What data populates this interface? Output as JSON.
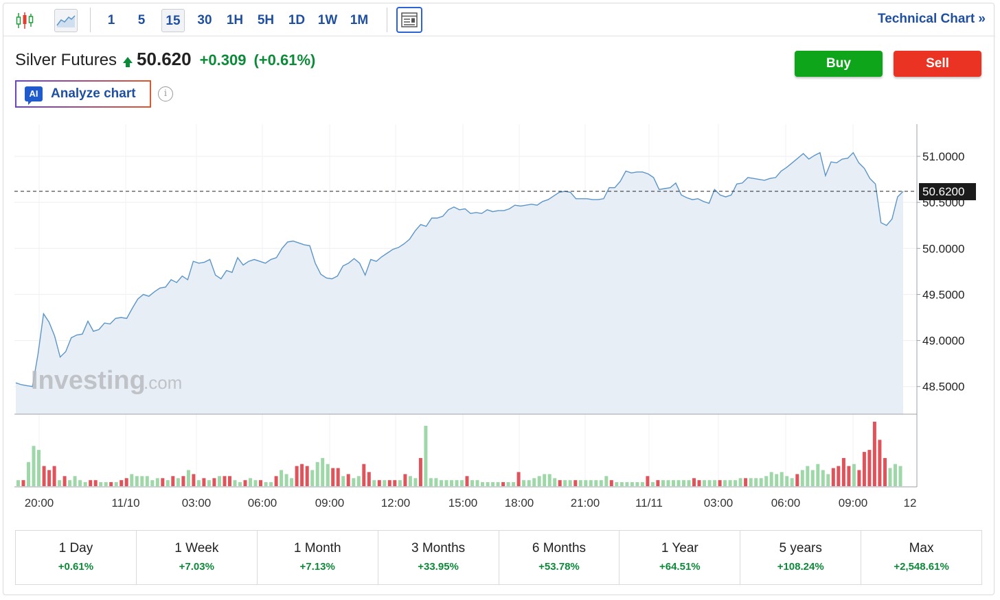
{
  "toolbar": {
    "intervals": [
      "1",
      "5",
      "15",
      "30",
      "1H",
      "5H",
      "1D",
      "1W",
      "1M"
    ],
    "active_interval": "15",
    "technical_chart_label": "Technical Chart »"
  },
  "header": {
    "symbol": "Silver Futures",
    "price": "50.620",
    "change": "+0.309",
    "change_pct": "(+0.61%)"
  },
  "actions": {
    "buy": "Buy",
    "sell": "Sell"
  },
  "ai": {
    "badge": "AI",
    "label": "Analyze chart",
    "info": "i"
  },
  "watermark": {
    "brand": "Investing",
    "suffix": ".com"
  },
  "colors": {
    "accent": "#1f4fa0",
    "up": "#0b8a38",
    "buy": "#0ea51b",
    "sell": "#ea3322",
    "line": "#5b95c7",
    "area": "#e8eef6",
    "vol_up": "#9fd8a8",
    "vol_down": "#e0535b"
  },
  "chart_data": {
    "type": "area",
    "y_ticks": [
      "51.0000",
      "50.5000",
      "50.0000",
      "49.5000",
      "49.0000",
      "48.5000"
    ],
    "ylim": [
      48.2,
      51.35
    ],
    "x_labels": [
      "20:00",
      "11/10",
      "03:00",
      "06:00",
      "09:00",
      "12:00",
      "15:00",
      "18:00",
      "21:00",
      "11/11",
      "03:00",
      "06:00",
      "09:00",
      "12"
    ],
    "last_price_label": "50.6200",
    "last_price": 50.62,
    "price_series": [
      48.54,
      48.52,
      48.51,
      48.5,
      48.85,
      49.29,
      49.2,
      49.05,
      48.82,
      48.88,
      49.03,
      49.06,
      49.07,
      49.21,
      49.1,
      49.12,
      49.19,
      49.18,
      49.24,
      49.25,
      49.24,
      49.35,
      49.45,
      49.5,
      49.48,
      49.53,
      49.57,
      49.58,
      49.66,
      49.63,
      49.7,
      49.66,
      49.86,
      49.84,
      49.85,
      49.88,
      49.71,
      49.67,
      49.76,
      49.74,
      49.9,
      49.82,
      49.86,
      49.88,
      49.86,
      49.84,
      49.88,
      49.9,
      50.0,
      50.07,
      50.08,
      50.06,
      50.04,
      50.03,
      49.84,
      49.72,
      49.68,
      49.67,
      49.7,
      49.81,
      49.84,
      49.89,
      49.84,
      49.71,
      49.88,
      49.86,
      49.91,
      49.95,
      49.99,
      50.01,
      50.05,
      50.1,
      50.19,
      50.26,
      50.24,
      50.33,
      50.33,
      50.35,
      50.42,
      50.45,
      50.42,
      50.43,
      50.38,
      50.39,
      50.38,
      50.42,
      50.4,
      50.41,
      50.41,
      50.43,
      50.47,
      50.46,
      50.47,
      50.48,
      50.47,
      50.51,
      50.53,
      50.57,
      50.61,
      50.62,
      50.61,
      50.54,
      50.54,
      50.54,
      50.53,
      50.53,
      50.54,
      50.66,
      50.66,
      50.73,
      50.84,
      50.82,
      50.83,
      50.83,
      50.81,
      50.77,
      50.64,
      50.65,
      50.66,
      50.71,
      50.58,
      50.55,
      50.53,
      50.54,
      50.51,
      50.49,
      50.64,
      50.58,
      50.56,
      50.58,
      50.7,
      50.71,
      50.77,
      50.76,
      50.75,
      50.74,
      50.76,
      50.77,
      50.84,
      50.88,
      50.93,
      50.98,
      51.03,
      50.97,
      51.01,
      51.04,
      50.79,
      50.94,
      50.93,
      50.97,
      50.98,
      51.04,
      50.93,
      50.87,
      50.76,
      50.7,
      50.28,
      50.25,
      50.32,
      50.56,
      50.62
    ],
    "volume_series": [
      {
        "v": 3,
        "d": "up"
      },
      {
        "v": 3,
        "d": "down"
      },
      {
        "v": 12,
        "d": "up"
      },
      {
        "v": 20,
        "d": "up"
      },
      {
        "v": 18,
        "d": "up"
      },
      {
        "v": 10,
        "d": "down"
      },
      {
        "v": 8,
        "d": "down"
      },
      {
        "v": 10,
        "d": "down"
      },
      {
        "v": 3,
        "d": "up"
      },
      {
        "v": 5,
        "d": "down"
      },
      {
        "v": 3,
        "d": "up"
      },
      {
        "v": 5,
        "d": "up"
      },
      {
        "v": 3,
        "d": "up"
      },
      {
        "v": 2,
        "d": "up"
      },
      {
        "v": 3,
        "d": "down"
      },
      {
        "v": 3,
        "d": "down"
      },
      {
        "v": 2,
        "d": "up"
      },
      {
        "v": 2,
        "d": "up"
      },
      {
        "v": 2,
        "d": "down"
      },
      {
        "v": 2,
        "d": "up"
      },
      {
        "v": 3,
        "d": "down"
      },
      {
        "v": 4,
        "d": "down"
      },
      {
        "v": 6,
        "d": "up"
      },
      {
        "v": 5,
        "d": "up"
      },
      {
        "v": 5,
        "d": "up"
      },
      {
        "v": 5,
        "d": "up"
      },
      {
        "v": 3,
        "d": "up"
      },
      {
        "v": 4,
        "d": "up"
      },
      {
        "v": 4,
        "d": "down"
      },
      {
        "v": 3,
        "d": "up"
      },
      {
        "v": 5,
        "d": "down"
      },
      {
        "v": 4,
        "d": "up"
      },
      {
        "v": 5,
        "d": "down"
      },
      {
        "v": 8,
        "d": "up"
      },
      {
        "v": 6,
        "d": "down"
      },
      {
        "v": 3,
        "d": "up"
      },
      {
        "v": 4,
        "d": "down"
      },
      {
        "v": 3,
        "d": "up"
      },
      {
        "v": 4,
        "d": "down"
      },
      {
        "v": 5,
        "d": "up"
      },
      {
        "v": 5,
        "d": "down"
      },
      {
        "v": 5,
        "d": "down"
      },
      {
        "v": 3,
        "d": "up"
      },
      {
        "v": 2,
        "d": "up"
      },
      {
        "v": 3,
        "d": "down"
      },
      {
        "v": 4,
        "d": "up"
      },
      {
        "v": 3,
        "d": "up"
      },
      {
        "v": 3,
        "d": "down"
      },
      {
        "v": 2,
        "d": "up"
      },
      {
        "v": 2,
        "d": "up"
      },
      {
        "v": 5,
        "d": "down"
      },
      {
        "v": 8,
        "d": "up"
      },
      {
        "v": 6,
        "d": "up"
      },
      {
        "v": 4,
        "d": "up"
      },
      {
        "v": 10,
        "d": "down"
      },
      {
        "v": 11,
        "d": "down"
      },
      {
        "v": 10,
        "d": "down"
      },
      {
        "v": 8,
        "d": "up"
      },
      {
        "v": 12,
        "d": "up"
      },
      {
        "v": 14,
        "d": "up"
      },
      {
        "v": 11,
        "d": "up"
      },
      {
        "v": 9,
        "d": "down"
      },
      {
        "v": 9,
        "d": "down"
      },
      {
        "v": 5,
        "d": "up"
      },
      {
        "v": 6,
        "d": "down"
      },
      {
        "v": 4,
        "d": "up"
      },
      {
        "v": 5,
        "d": "up"
      },
      {
        "v": 11,
        "d": "down"
      },
      {
        "v": 7,
        "d": "down"
      },
      {
        "v": 3,
        "d": "up"
      },
      {
        "v": 3,
        "d": "down"
      },
      {
        "v": 3,
        "d": "up"
      },
      {
        "v": 3,
        "d": "down"
      },
      {
        "v": 3,
        "d": "down"
      },
      {
        "v": 3,
        "d": "up"
      },
      {
        "v": 6,
        "d": "down"
      },
      {
        "v": 5,
        "d": "up"
      },
      {
        "v": 4,
        "d": "up"
      },
      {
        "v": 14,
        "d": "down"
      },
      {
        "v": 30,
        "d": "up"
      },
      {
        "v": 4,
        "d": "up"
      },
      {
        "v": 4,
        "d": "up"
      },
      {
        "v": 3,
        "d": "up"
      },
      {
        "v": 3,
        "d": "up"
      },
      {
        "v": 3,
        "d": "up"
      },
      {
        "v": 3,
        "d": "up"
      },
      {
        "v": 3,
        "d": "up"
      },
      {
        "v": 5,
        "d": "down"
      },
      {
        "v": 3,
        "d": "up"
      },
      {
        "v": 3,
        "d": "up"
      },
      {
        "v": 2,
        "d": "up"
      },
      {
        "v": 2,
        "d": "up"
      },
      {
        "v": 2,
        "d": "up"
      },
      {
        "v": 2,
        "d": "up"
      },
      {
        "v": 2,
        "d": "down"
      },
      {
        "v": 2,
        "d": "up"
      },
      {
        "v": 2,
        "d": "up"
      },
      {
        "v": 7,
        "d": "down"
      },
      {
        "v": 3,
        "d": "up"
      },
      {
        "v": 3,
        "d": "up"
      },
      {
        "v": 4,
        "d": "up"
      },
      {
        "v": 5,
        "d": "up"
      },
      {
        "v": 6,
        "d": "up"
      },
      {
        "v": 6,
        "d": "up"
      },
      {
        "v": 4,
        "d": "up"
      },
      {
        "v": 3,
        "d": "down"
      },
      {
        "v": 3,
        "d": "up"
      },
      {
        "v": 3,
        "d": "up"
      },
      {
        "v": 3,
        "d": "down"
      },
      {
        "v": 3,
        "d": "up"
      },
      {
        "v": 3,
        "d": "up"
      },
      {
        "v": 3,
        "d": "up"
      },
      {
        "v": 3,
        "d": "up"
      },
      {
        "v": 3,
        "d": "up"
      },
      {
        "v": 5,
        "d": "up"
      },
      {
        "v": 3,
        "d": "down"
      },
      {
        "v": 2,
        "d": "up"
      },
      {
        "v": 2,
        "d": "up"
      },
      {
        "v": 2,
        "d": "up"
      },
      {
        "v": 2,
        "d": "up"
      },
      {
        "v": 2,
        "d": "up"
      },
      {
        "v": 2,
        "d": "up"
      },
      {
        "v": 5,
        "d": "down"
      },
      {
        "v": 2,
        "d": "up"
      },
      {
        "v": 3,
        "d": "down"
      },
      {
        "v": 3,
        "d": "up"
      },
      {
        "v": 3,
        "d": "up"
      },
      {
        "v": 3,
        "d": "up"
      },
      {
        "v": 3,
        "d": "up"
      },
      {
        "v": 3,
        "d": "up"
      },
      {
        "v": 3,
        "d": "up"
      },
      {
        "v": 4,
        "d": "down"
      },
      {
        "v": 3,
        "d": "down"
      },
      {
        "v": 3,
        "d": "up"
      },
      {
        "v": 3,
        "d": "up"
      },
      {
        "v": 3,
        "d": "up"
      },
      {
        "v": 3,
        "d": "down"
      },
      {
        "v": 3,
        "d": "up"
      },
      {
        "v": 3,
        "d": "up"
      },
      {
        "v": 3,
        "d": "up"
      },
      {
        "v": 4,
        "d": "up"
      },
      {
        "v": 4,
        "d": "down"
      },
      {
        "v": 4,
        "d": "up"
      },
      {
        "v": 4,
        "d": "up"
      },
      {
        "v": 4,
        "d": "up"
      },
      {
        "v": 5,
        "d": "up"
      },
      {
        "v": 7,
        "d": "up"
      },
      {
        "v": 6,
        "d": "up"
      },
      {
        "v": 7,
        "d": "up"
      },
      {
        "v": 5,
        "d": "up"
      },
      {
        "v": 4,
        "d": "up"
      },
      {
        "v": 6,
        "d": "down"
      },
      {
        "v": 8,
        "d": "up"
      },
      {
        "v": 10,
        "d": "up"
      },
      {
        "v": 8,
        "d": "up"
      },
      {
        "v": 11,
        "d": "up"
      },
      {
        "v": 8,
        "d": "up"
      },
      {
        "v": 6,
        "d": "up"
      },
      {
        "v": 9,
        "d": "down"
      },
      {
        "v": 10,
        "d": "down"
      },
      {
        "v": 14,
        "d": "down"
      },
      {
        "v": 10,
        "d": "down"
      },
      {
        "v": 11,
        "d": "up"
      },
      {
        "v": 8,
        "d": "down"
      },
      {
        "v": 17,
        "d": "down"
      },
      {
        "v": 18,
        "d": "down"
      },
      {
        "v": 32,
        "d": "down"
      },
      {
        "v": 23,
        "d": "down"
      },
      {
        "v": 14,
        "d": "down"
      },
      {
        "v": 9,
        "d": "up"
      },
      {
        "v": 11,
        "d": "up"
      },
      {
        "v": 10,
        "d": "up"
      }
    ]
  },
  "periods": [
    {
      "label": "1 Day",
      "value": "+0.61%"
    },
    {
      "label": "1 Week",
      "value": "+7.03%"
    },
    {
      "label": "1 Month",
      "value": "+7.13%"
    },
    {
      "label": "3 Months",
      "value": "+33.95%"
    },
    {
      "label": "6 Months",
      "value": "+53.78%"
    },
    {
      "label": "1 Year",
      "value": "+64.51%"
    },
    {
      "label": "5 years",
      "value": "+108.24%"
    },
    {
      "label": "Max",
      "value": "+2,548.61%"
    }
  ]
}
